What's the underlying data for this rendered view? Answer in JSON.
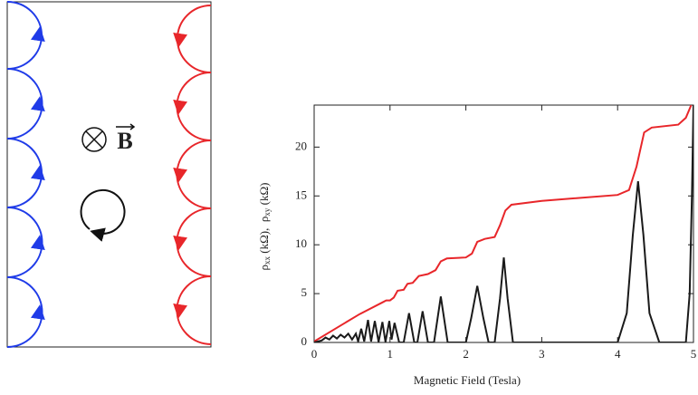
{
  "diagram": {
    "field_label": "B"
  },
  "chart_data": {
    "type": "line",
    "x_label": "Magnetic Field (Tesla)",
    "y_label": {
      "parts": [
        "ρ",
        "xx",
        " (kΩ),  ",
        "ρ",
        "xy",
        " (kΩ)"
      ]
    },
    "xlim": [
      0,
      5
    ],
    "ylim": [
      0,
      24.3
    ],
    "xticks": [
      0,
      1,
      2,
      3,
      4,
      5
    ],
    "yticks": [
      0,
      5,
      10,
      15,
      20
    ],
    "grid": false,
    "series": [
      {
        "color": "#e8262a",
        "x": [
          0,
          0.3,
          0.6,
          0.9,
          0.95,
          1.0,
          1.05,
          1.1,
          1.18,
          1.23,
          1.3,
          1.38,
          1.5,
          1.6,
          1.67,
          1.75,
          2.0,
          2.08,
          2.15,
          2.25,
          2.38,
          2.45,
          2.52,
          2.6,
          3.0,
          4.0,
          4.15,
          4.25,
          4.35,
          4.45,
          4.8,
          4.9,
          4.97
        ],
        "values": [
          0.1,
          1.5,
          2.9,
          4.1,
          4.3,
          4.3,
          4.6,
          5.3,
          5.4,
          6.0,
          6.1,
          6.8,
          7.0,
          7.4,
          8.3,
          8.6,
          8.7,
          9.1,
          10.3,
          10.6,
          10.8,
          12,
          13.5,
          14.1,
          14.5,
          15.1,
          15.6,
          18,
          21.5,
          22,
          22.3,
          23,
          24.3
        ]
      },
      {
        "color": "#1a1a1a",
        "x": [
          0,
          0.1,
          0.15,
          0.2,
          0.25,
          0.3,
          0.35,
          0.4,
          0.45,
          0.5,
          0.55,
          0.58,
          0.62,
          0.66,
          0.71,
          0.75,
          0.8,
          0.85,
          0.9,
          0.94,
          0.99,
          1.02,
          1.06,
          1.12,
          1.18,
          1.25,
          1.32,
          1.36,
          1.43,
          1.5,
          1.58,
          1.67,
          1.76,
          2.0,
          2.07,
          2.15,
          2.23,
          2.3,
          2.38,
          2.45,
          2.5,
          2.55,
          2.62,
          4.0,
          4.12,
          4.2,
          4.27,
          4.34,
          4.42,
          4.55,
          4.9,
          4.95,
          4.98,
          5.0
        ],
        "values": [
          0,
          0.2,
          0.5,
          0.3,
          0.7,
          0.4,
          0.8,
          0.5,
          0.9,
          0.3,
          0.9,
          0.1,
          1.4,
          0.1,
          2.3,
          0.1,
          2.2,
          0.05,
          2.1,
          0.05,
          2.2,
          0.3,
          2.0,
          0,
          0,
          3.0,
          0,
          0,
          3.2,
          0,
          0,
          4.7,
          0,
          0,
          2.5,
          5.8,
          2.5,
          0,
          0,
          4.5,
          8.7,
          4.5,
          0,
          0,
          3,
          11,
          16.5,
          11,
          3,
          0,
          0,
          5,
          15,
          24.3
        ]
      }
    ]
  }
}
